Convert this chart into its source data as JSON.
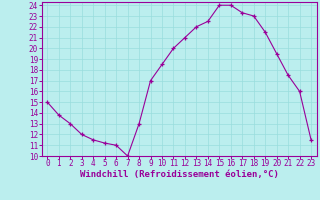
{
  "x": [
    0,
    1,
    2,
    3,
    4,
    5,
    6,
    7,
    8,
    9,
    10,
    11,
    12,
    13,
    14,
    15,
    16,
    17,
    18,
    19,
    20,
    21,
    22,
    23
  ],
  "y": [
    15.0,
    13.8,
    13.0,
    12.0,
    11.5,
    11.2,
    11.0,
    10.0,
    13.0,
    17.0,
    18.5,
    20.0,
    21.0,
    22.0,
    22.5,
    24.0,
    24.0,
    23.3,
    23.0,
    21.5,
    19.5,
    17.5,
    16.0,
    11.5
  ],
  "line_color": "#990099",
  "marker": "+",
  "background_color": "#bbeeee",
  "grid_color": "#99dddd",
  "axis_label_color": "#990099",
  "tick_color": "#990099",
  "xlabel": "Windchill (Refroidissement éolien,°C)",
  "xlim": [
    -0.5,
    23.5
  ],
  "ylim": [
    10,
    24.3
  ],
  "yticks": [
    10,
    11,
    12,
    13,
    14,
    15,
    16,
    17,
    18,
    19,
    20,
    21,
    22,
    23,
    24
  ],
  "xticks": [
    0,
    1,
    2,
    3,
    4,
    5,
    6,
    7,
    8,
    9,
    10,
    11,
    12,
    13,
    14,
    15,
    16,
    17,
    18,
    19,
    20,
    21,
    22,
    23
  ],
  "border_color": "#990099",
  "xlabel_fontsize": 6.5,
  "tick_fontsize": 5.5
}
